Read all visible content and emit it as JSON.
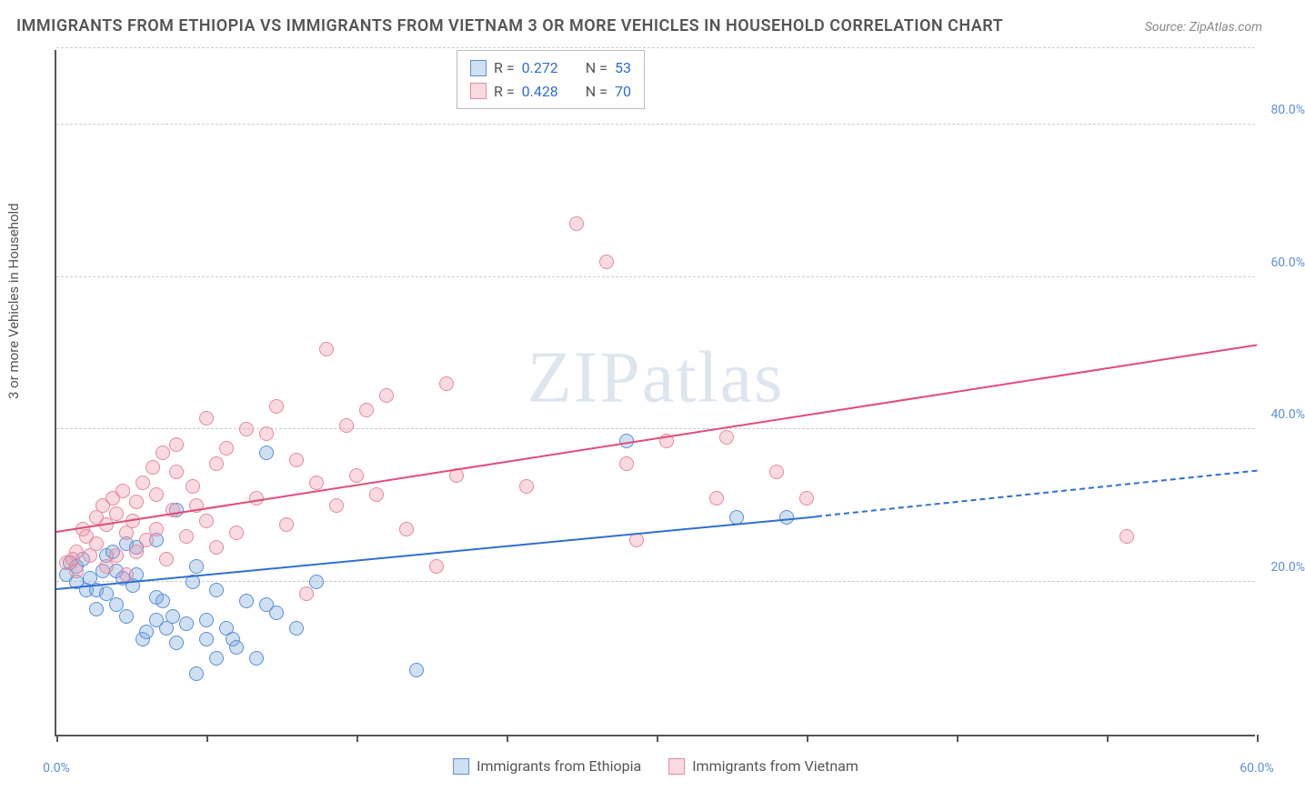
{
  "title": "IMMIGRANTS FROM ETHIOPIA VS IMMIGRANTS FROM VIETNAM 3 OR MORE VEHICLES IN HOUSEHOLD CORRELATION CHART",
  "source": "Source: ZipAtlas.com",
  "y_axis_label": "3 or more Vehicles in Household",
  "watermark": {
    "bold": "ZIP",
    "light": "atlas"
  },
  "chart": {
    "type": "scatter",
    "xlim": [
      0,
      60
    ],
    "ylim": [
      0,
      90
    ],
    "x_ticks": [
      0,
      7.5,
      15,
      22.5,
      30,
      37.5,
      45,
      52.5,
      60
    ],
    "x_tick_labels": {
      "0": "0.0%",
      "60": "60.0%"
    },
    "y_ticks": [
      20,
      40,
      60,
      80
    ],
    "y_tick_labels": {
      "20": "20.0%",
      "40": "40.0%",
      "60": "60.0%",
      "80": "80.0%"
    },
    "background_color": "#ffffff",
    "grid_color": "#cccccc",
    "axis_color": "#555555",
    "tick_label_color": "#5b8fd6",
    "point_radius": 8,
    "series": [
      {
        "name": "Immigrants from Ethiopia",
        "fill": "rgba(120,165,220,0.35)",
        "stroke": "#5b8fd6",
        "R": "0.272",
        "N": "53",
        "trendline": {
          "x1": 0,
          "y1": 19,
          "x2": 38,
          "y2": 28.5,
          "x2_dash": 60,
          "y2_dash": 34.5,
          "color": "#2f6fcf"
        },
        "points": [
          [
            0.5,
            21
          ],
          [
            0.7,
            22.5
          ],
          [
            1,
            22
          ],
          [
            1,
            20
          ],
          [
            1.3,
            23
          ],
          [
            1.5,
            19
          ],
          [
            1.7,
            20.5
          ],
          [
            2,
            19
          ],
          [
            2,
            16.5
          ],
          [
            2.3,
            21.5
          ],
          [
            2.5,
            18.5
          ],
          [
            2.5,
            23.5
          ],
          [
            2.8,
            24
          ],
          [
            3,
            17
          ],
          [
            3,
            21.5
          ],
          [
            3.3,
            20.5
          ],
          [
            3.5,
            25
          ],
          [
            3.5,
            15.5
          ],
          [
            3.8,
            19.5
          ],
          [
            4,
            21
          ],
          [
            4,
            24.5
          ],
          [
            4.3,
            12.5
          ],
          [
            4.5,
            13.5
          ],
          [
            5,
            15
          ],
          [
            5,
            18
          ],
          [
            5,
            25.5
          ],
          [
            5.3,
            17.5
          ],
          [
            5.5,
            14
          ],
          [
            5.8,
            15.5
          ],
          [
            6,
            12
          ],
          [
            6,
            29.5
          ],
          [
            6.5,
            14.5
          ],
          [
            6.8,
            20
          ],
          [
            7,
            8
          ],
          [
            7,
            22
          ],
          [
            7.5,
            15
          ],
          [
            7.5,
            12.5
          ],
          [
            8,
            10
          ],
          [
            8,
            19
          ],
          [
            8.5,
            14
          ],
          [
            8.8,
            12.5
          ],
          [
            9,
            11.5
          ],
          [
            9.5,
            17.5
          ],
          [
            10,
            10
          ],
          [
            10.5,
            17
          ],
          [
            10.5,
            37
          ],
          [
            11,
            16
          ],
          [
            12,
            14
          ],
          [
            13,
            20
          ],
          [
            18,
            8.5
          ],
          [
            28.5,
            38.5
          ],
          [
            34,
            28.5
          ],
          [
            36.5,
            28.5
          ]
        ]
      },
      {
        "name": "Immigrants from Vietnam",
        "fill": "rgba(240,150,170,0.35)",
        "stroke": "#e38aa0",
        "R": "0.428",
        "N": "70",
        "trendline": {
          "x1": 0,
          "y1": 26.5,
          "x2": 60,
          "y2": 51,
          "color": "#e24b78"
        },
        "points": [
          [
            0.5,
            22.5
          ],
          [
            0.8,
            23
          ],
          [
            1,
            24
          ],
          [
            1,
            21.5
          ],
          [
            1.3,
            27
          ],
          [
            1.5,
            26
          ],
          [
            1.7,
            23.5
          ],
          [
            2,
            25
          ],
          [
            2,
            28.5
          ],
          [
            2.3,
            30
          ],
          [
            2.5,
            22
          ],
          [
            2.5,
            27.5
          ],
          [
            2.8,
            31
          ],
          [
            3,
            23.5
          ],
          [
            3,
            29
          ],
          [
            3.3,
            32
          ],
          [
            3.5,
            21
          ],
          [
            3.5,
            26.5
          ],
          [
            3.8,
            28
          ],
          [
            4,
            24
          ],
          [
            4,
            30.5
          ],
          [
            4.3,
            33
          ],
          [
            4.5,
            25.5
          ],
          [
            4.8,
            35
          ],
          [
            5,
            27
          ],
          [
            5,
            31.5
          ],
          [
            5.3,
            37
          ],
          [
            5.5,
            23
          ],
          [
            5.8,
            29.5
          ],
          [
            6,
            34.5
          ],
          [
            6,
            38
          ],
          [
            6.5,
            26
          ],
          [
            6.8,
            32.5
          ],
          [
            7,
            30
          ],
          [
            7.5,
            28
          ],
          [
            7.5,
            41.5
          ],
          [
            8,
            24.5
          ],
          [
            8,
            35.5
          ],
          [
            8.5,
            37.5
          ],
          [
            9,
            26.5
          ],
          [
            9.5,
            40
          ],
          [
            10,
            31
          ],
          [
            10.5,
            39.5
          ],
          [
            11,
            43
          ],
          [
            11.5,
            27.5
          ],
          [
            12,
            36
          ],
          [
            12.5,
            18.5
          ],
          [
            13,
            33
          ],
          [
            13.5,
            50.5
          ],
          [
            14,
            30
          ],
          [
            14.5,
            40.5
          ],
          [
            15,
            34
          ],
          [
            15.5,
            42.5
          ],
          [
            16,
            31.5
          ],
          [
            16.5,
            44.5
          ],
          [
            17.5,
            27
          ],
          [
            19,
            22
          ],
          [
            19.5,
            46
          ],
          [
            20,
            34
          ],
          [
            23.5,
            32.5
          ],
          [
            26,
            67
          ],
          [
            27.5,
            62
          ],
          [
            28.5,
            35.5
          ],
          [
            29,
            25.5
          ],
          [
            30.5,
            38.5
          ],
          [
            33,
            31
          ],
          [
            33.5,
            39
          ],
          [
            36,
            34.5
          ],
          [
            37.5,
            31
          ],
          [
            53.5,
            26
          ]
        ]
      }
    ]
  },
  "legend_stats_labels": {
    "R": "R =",
    "N": "N ="
  },
  "bottom_legend": [
    {
      "label": "Immigrants from Ethiopia",
      "fill": "rgba(120,165,220,0.35)",
      "stroke": "#5b8fd6"
    },
    {
      "label": "Immigrants from Vietnam",
      "fill": "rgba(240,150,170,0.35)",
      "stroke": "#e38aa0"
    }
  ]
}
